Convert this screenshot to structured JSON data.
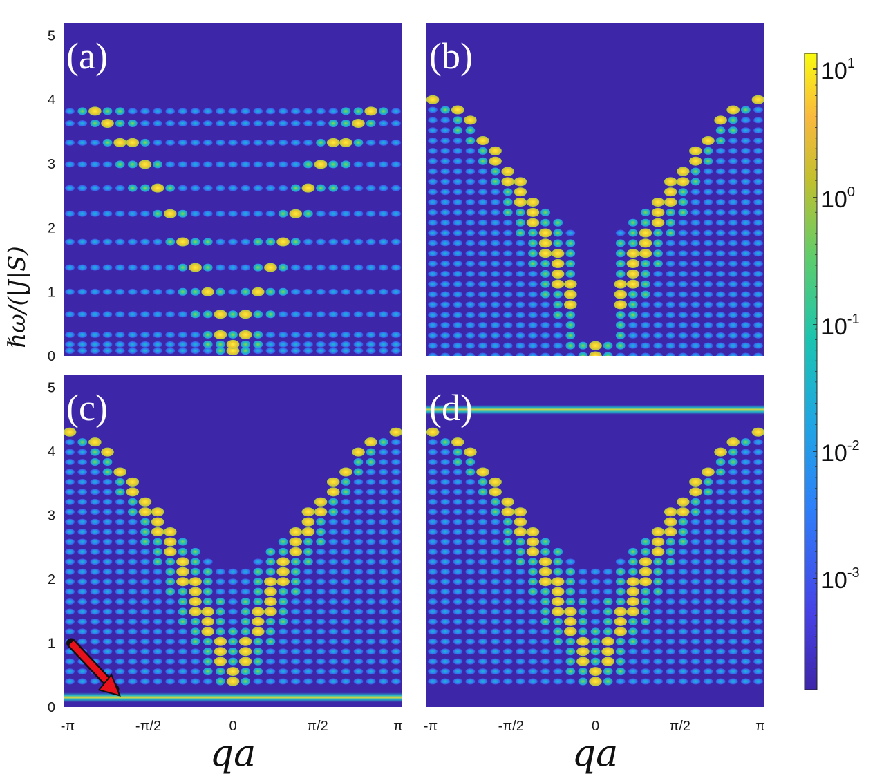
{
  "chart_data": [
    {
      "type": "heatmap",
      "panel_label": "(a)",
      "description": "flat dispersive bands with bright V-shaped intensity",
      "x_ticks": [
        "-π",
        "-π/2",
        "0",
        "π/2",
        "π"
      ],
      "y_ticks": [
        "0",
        "1",
        "2",
        "3",
        "4",
        "5"
      ],
      "xlim": [
        -3.1416,
        3.1416
      ],
      "ylim": [
        0,
        5.2
      ],
      "band_top": 4.0,
      "band_min": 0.05,
      "num_levels": 13
    },
    {
      "type": "heatmap",
      "panel_label": "(b)",
      "x_ticks": [
        "-π",
        "-π/2",
        "0",
        "π/2",
        "π"
      ],
      "y_ticks": [],
      "xlim": [
        -3.1416,
        3.1416
      ],
      "ylim": [
        0,
        5.2
      ],
      "band_top": 4.0,
      "band_min": 0.0,
      "num_levels": 26
    },
    {
      "type": "heatmap",
      "panel_label": "(c)",
      "x_ticks": [
        "-π",
        "-π/2",
        "0",
        "π/2",
        "π"
      ],
      "y_ticks": [
        "0",
        "1",
        "2",
        "3",
        "4",
        "5"
      ],
      "xlim": [
        -3.1416,
        3.1416
      ],
      "ylim": [
        0,
        5.2
      ],
      "band_top": 4.3,
      "band_min": 0.4,
      "num_levels": 26,
      "flat_mode": 0.15,
      "annotation": "red arrow pointing to flat mode"
    },
    {
      "type": "heatmap",
      "panel_label": "(d)",
      "x_ticks": [
        "-π",
        "-π/2",
        "0",
        "π/2",
        "π"
      ],
      "y_ticks": [],
      "xlim": [
        -3.1416,
        3.1416
      ],
      "ylim": [
        0,
        5.2
      ],
      "band_top": 4.3,
      "band_min": 0.4,
      "num_levels": 26,
      "flat_mode": 4.65
    }
  ],
  "axes": {
    "xlabel": "qa",
    "ylabel": "ℏω/(|J|S)"
  },
  "colorbar": {
    "scale": "log",
    "ticks": [
      {
        "base": "10",
        "exp": "1"
      },
      {
        "base": "10",
        "exp": "0"
      },
      {
        "base": "10",
        "exp": "-1"
      },
      {
        "base": "10",
        "exp": "-2"
      },
      {
        "base": "10",
        "exp": "-3"
      }
    ],
    "colormap": [
      "#3e26a8",
      "#4741e5",
      "#2f7ef9",
      "#20a6e3",
      "#1bc4b1",
      "#5fcd6b",
      "#c2c02f",
      "#f9b93e",
      "#f9fb0e"
    ]
  },
  "colors": {
    "background": "#3d26a7",
    "low": "#3e26a8",
    "mid": "#20a6e3",
    "cyan": "#1bc4b1",
    "green": "#7fcf56",
    "yellow": "#f6d534",
    "arrow": "#e8101a"
  }
}
